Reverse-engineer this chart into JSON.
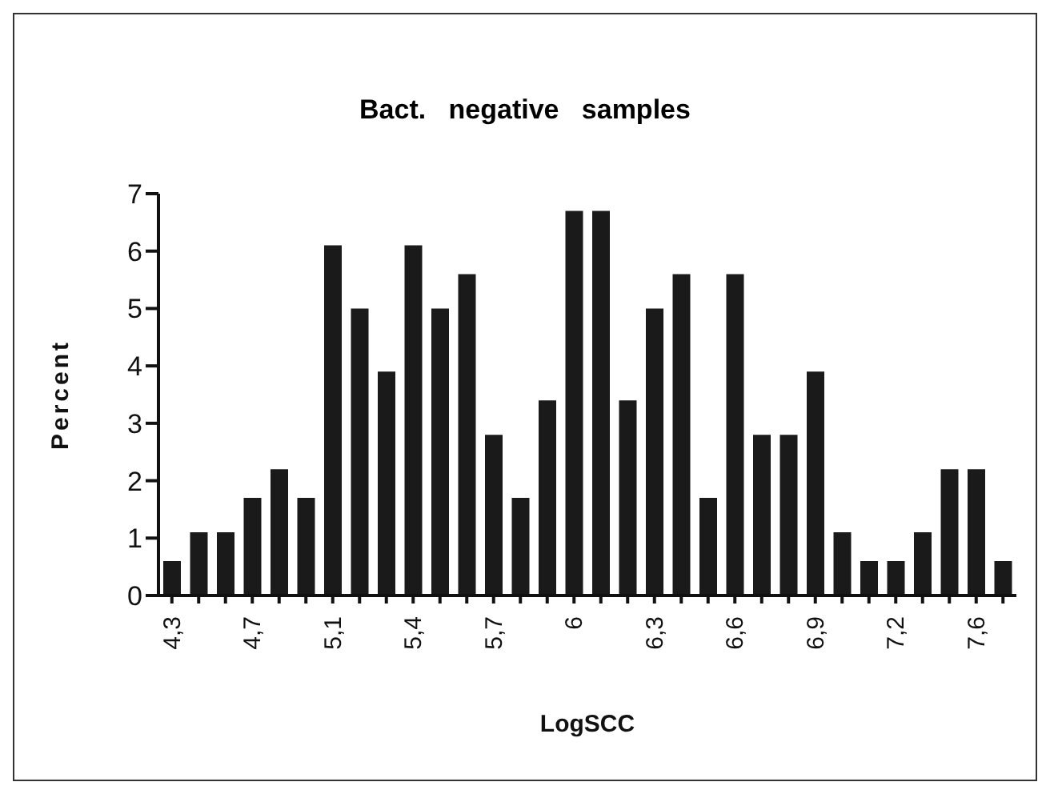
{
  "chart_data": {
    "type": "bar",
    "title": "Bact.   negative   samples",
    "xlabel": "LogSCC",
    "ylabel": "Percent",
    "categories": [
      "4,3",
      null,
      null,
      "4,7",
      null,
      null,
      "5,1",
      null,
      null,
      "5,4",
      null,
      null,
      "5,7",
      null,
      null,
      "6",
      null,
      null,
      "6,3",
      null,
      null,
      "6,6",
      null,
      null,
      "6,9",
      null,
      null,
      "7,2",
      null,
      null,
      "7,6",
      null
    ],
    "values": [
      0.6,
      1.1,
      1.1,
      1.7,
      2.2,
      1.7,
      6.1,
      5,
      3.9,
      6.1,
      5,
      5.6,
      2.8,
      1.7,
      3.4,
      6.7,
      6.7,
      3.4,
      5,
      5.6,
      1.7,
      5.6,
      2.8,
      2.8,
      3.9,
      1.1,
      0.6,
      0.6,
      1.1,
      2.2,
      2.2,
      0.6
    ],
    "color": "#1a1a1a",
    "ylim": [
      0,
      7
    ],
    "yticks": [
      0,
      1,
      2,
      3,
      4,
      5,
      6,
      7
    ],
    "grid": false
  }
}
